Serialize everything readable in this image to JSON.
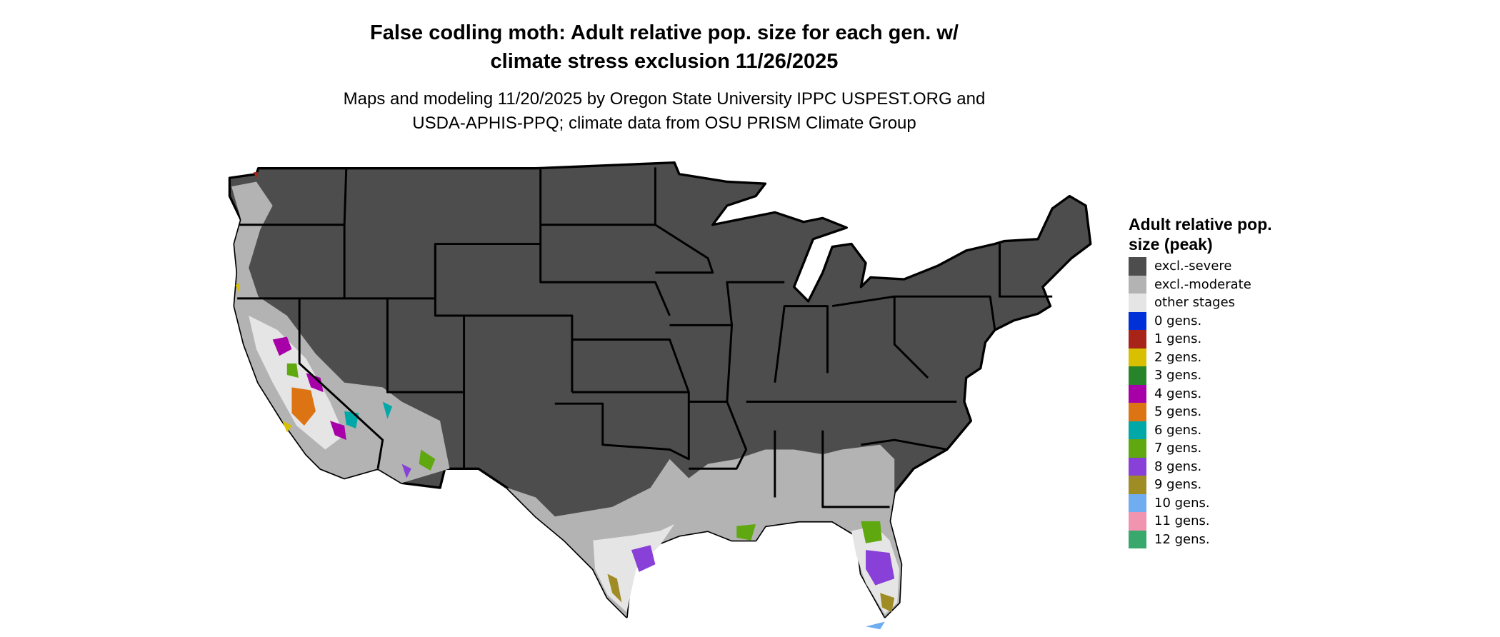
{
  "title": {
    "line1": "False codling moth: Adult relative pop. size for each gen. w/",
    "line2": "climate stress exclusion 11/26/2025"
  },
  "subtitle": {
    "line1": "Maps and modeling 11/20/2025 by Oregon State University IPPC USPEST.ORG and",
    "line2": "USDA-APHIS-PPQ; climate data from OSU PRISM Climate Group"
  },
  "map": {
    "region": "Contiguous United States",
    "colors": {
      "severe": "#4d4d4d",
      "moderate": "#b3b3b3",
      "other": "#e5e5e5",
      "border": "#000000"
    }
  },
  "legend": {
    "title": "Adult relative pop. size (peak)",
    "items": [
      {
        "label": "excl.-severe",
        "color": "#4d4d4d"
      },
      {
        "label": "excl.-moderate",
        "color": "#b3b3b3"
      },
      {
        "label": "other stages",
        "color": "#e5e5e5"
      },
      {
        "label": "0 gens.",
        "color": "#0030d8"
      },
      {
        "label": "1 gens.",
        "color": "#a82418"
      },
      {
        "label": "2 gens.",
        "color": "#d8c000"
      },
      {
        "label": "3 gens.",
        "color": "#288428"
      },
      {
        "label": "4 gens.",
        "color": "#a800a8"
      },
      {
        "label": "5 gens.",
        "color": "#dc7414"
      },
      {
        "label": "6 gens.",
        "color": "#00a8a8"
      },
      {
        "label": "7 gens.",
        "color": "#60a810"
      },
      {
        "label": "8 gens.",
        "color": "#8840d8"
      },
      {
        "label": "9 gens.",
        "color": "#a08c24"
      },
      {
        "label": "10 gens.",
        "color": "#70acf0"
      },
      {
        "label": "11 gens.",
        "color": "#f094b0"
      },
      {
        "label": "12 gens.",
        "color": "#38a86c"
      }
    ]
  }
}
